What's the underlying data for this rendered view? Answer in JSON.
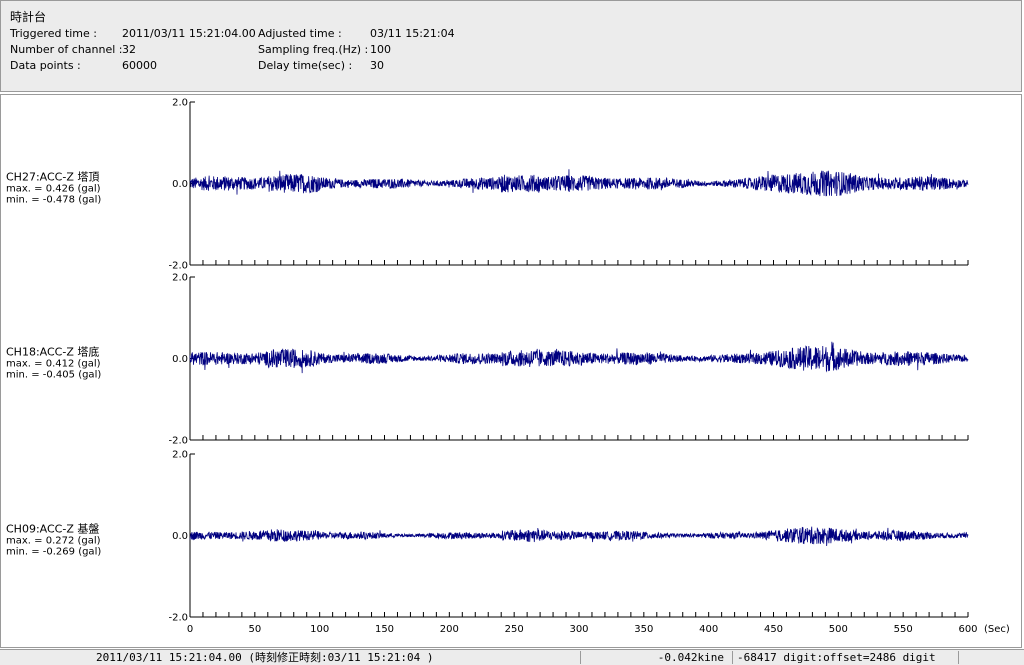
{
  "header": {
    "title": "時計台",
    "triggered_label": "Triggered time :",
    "triggered_value": "2011/03/11 15:21:04.00",
    "channels_label": "Number of channel :",
    "channels_value": "32",
    "points_label": "Data points :",
    "points_value": "60000",
    "adjusted_label": "Adjusted time :",
    "adjusted_value": "03/11 15:21:04",
    "sampling_label": "Sampling freq.(Hz) :",
    "sampling_value": "100",
    "delay_label": "Delay time(sec) :",
    "delay_value": "30"
  },
  "chart_data": {
    "type": "line",
    "xlabel": "(Sec)",
    "xlim": [
      0,
      600
    ],
    "x_ticks": [
      "0",
      "50",
      "100",
      "150",
      "200",
      "250",
      "300",
      "350",
      "400",
      "450",
      "500",
      "550",
      "600"
    ],
    "ylim": [
      -2.0,
      2.0
    ],
    "y_tick_labels": [
      "2.0",
      "0.0",
      "-2.0"
    ],
    "line_color": "#000080",
    "series": [
      {
        "name": "CH27:ACC-Z 塔頂",
        "max_text": "max. = 0.426 (gal)",
        "min_text": "min. = -0.478 (gal)",
        "max": 0.426,
        "min": -0.478
      },
      {
        "name": "CH18:ACC-Z 塔底",
        "max_text": "max. = 0.412 (gal)",
        "min_text": "min. = -0.405 (gal)",
        "max": 0.412,
        "min": -0.405
      },
      {
        "name": "CH09:ACC-Z 基盤",
        "max_text": "max. = 0.272 (gal)",
        "min_text": "min. = -0.269 (gal)",
        "max": 0.272,
        "min": -0.269
      }
    ]
  },
  "status": {
    "time": "2011/03/11 15:21:04.00  (時刻修正時刻:03/11 15:21:04  )",
    "value": "-0.042kine",
    "digit": "-68417 digit:offset=2486 digit"
  }
}
